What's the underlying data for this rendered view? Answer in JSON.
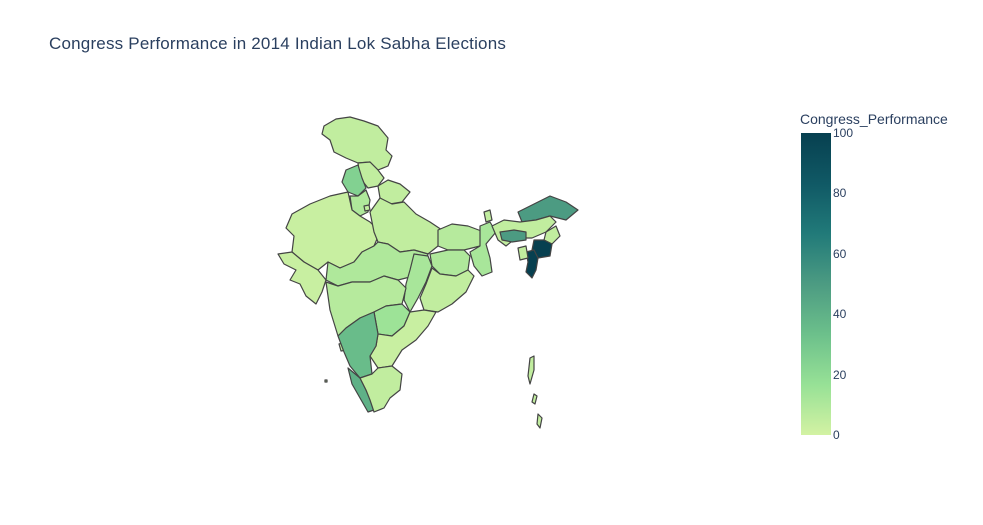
{
  "title": "Congress Performance in 2014 Indian Lok Sabha Elections",
  "colorbar": {
    "title": "Congress_Performance",
    "ticks": [
      "100",
      "80",
      "60",
      "40",
      "20",
      "0"
    ],
    "range": [
      0,
      100
    ],
    "colors": [
      "#d3f2a3",
      "#97e196",
      "#6cc08b",
      "#4c9b82",
      "#217a79",
      "#105965",
      "#074050"
    ]
  },
  "chart_data": {
    "type": "choropleth",
    "variable": "Congress_Performance",
    "range": [
      0,
      100
    ],
    "regions": [
      {
        "name": "Jammu and Kashmir",
        "value": 5
      },
      {
        "name": "Himachal Pradesh",
        "value": 5
      },
      {
        "name": "Punjab",
        "value": 25
      },
      {
        "name": "Haryana",
        "value": 10
      },
      {
        "name": "Uttarakhand",
        "value": 5
      },
      {
        "name": "Delhi",
        "value": 5
      },
      {
        "name": "Rajasthan",
        "value": 3
      },
      {
        "name": "Uttar Pradesh",
        "value": 5
      },
      {
        "name": "Bihar",
        "value": 8
      },
      {
        "name": "Gujarat",
        "value": 3
      },
      {
        "name": "Madhya Pradesh",
        "value": 10
      },
      {
        "name": "Jharkhand",
        "value": 10
      },
      {
        "name": "West Bengal",
        "value": 12
      },
      {
        "name": "Chhattisgarh",
        "value": 12
      },
      {
        "name": "Odisha",
        "value": 5
      },
      {
        "name": "Maharashtra",
        "value": 8
      },
      {
        "name": "Telangana",
        "value": 15
      },
      {
        "name": "Andhra Pradesh",
        "value": 3
      },
      {
        "name": "Goa",
        "value": 5
      },
      {
        "name": "Karnataka",
        "value": 35
      },
      {
        "name": "Kerala",
        "value": 40
      },
      {
        "name": "Tamil Nadu",
        "value": 5
      },
      {
        "name": "Sikkim",
        "value": 5
      },
      {
        "name": "Arunachal Pradesh",
        "value": 50
      },
      {
        "name": "Assam",
        "value": 5
      },
      {
        "name": "Meghalaya",
        "value": 50
      },
      {
        "name": "Nagaland",
        "value": 5
      },
      {
        "name": "Manipur",
        "value": 100
      },
      {
        "name": "Mizoram",
        "value": 100
      },
      {
        "name": "Tripura",
        "value": 5
      },
      {
        "name": "Andaman and Nicobar Islands",
        "value": 5
      },
      {
        "name": "Lakshadweep",
        "value": 5
      }
    ]
  }
}
